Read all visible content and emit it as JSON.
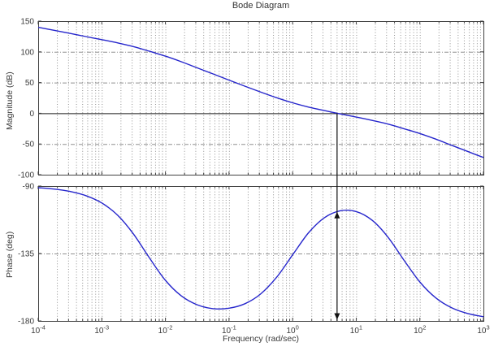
{
  "style": {
    "background": "#ffffff",
    "curve_color": "#2626cc",
    "grid_color": "#909090",
    "axis_color": "#404040",
    "zero_db_line_color": "#1a1a1a",
    "marker_color": "#111111",
    "text_color": "#3a3a3a"
  },
  "chart_data": {
    "type": "line",
    "title": "Bode Diagram",
    "xlabel": "Frequency  (rad/sec)",
    "x_scale": "log",
    "x_range": [
      0.0001,
      1000
    ],
    "x_ticks": {
      "base": "10",
      "exponents": [
        -4,
        -3,
        -2,
        -1,
        0,
        1,
        2,
        3
      ]
    },
    "grid": "on",
    "subplots": [
      {
        "name": "magnitude",
        "ylabel": "Magnitude (dB)",
        "ylim": [
          -100,
          150
        ],
        "yticks": [
          150,
          100,
          50,
          0,
          -50,
          -100
        ],
        "solid_line_at_db": 0
      },
      {
        "name": "phase",
        "ylabel": "Phase (deg)",
        "ylim": [
          -180,
          -90
        ],
        "yticks": [
          -90,
          -135,
          -180
        ]
      }
    ],
    "frequencies_rad_s": [
      0.0001,
      0.000178,
      0.000316,
      0.000562,
      0.001,
      0.00178,
      0.00316,
      0.00562,
      0.01,
      0.0178,
      0.0316,
      0.0562,
      0.1,
      0.178,
      0.316,
      0.562,
      1,
      1.78,
      3.16,
      5.62,
      10,
      17.8,
      31.6,
      56.2,
      100,
      178,
      316,
      562,
      1000
    ],
    "magnitude_db": [
      140,
      135,
      130,
      124.9,
      119.8,
      114.5,
      108.5,
      100.9,
      93,
      83.9,
      73.9,
      64,
      54,
      44.1,
      34.4,
      25.2,
      17,
      10.1,
      4.4,
      -1,
      -6.2,
      -11.6,
      -17.6,
      -25.1,
      -33,
      -42.1,
      -52.1,
      -62.1,
      -72
    ],
    "phase_deg": [
      -91.1,
      -92,
      -93.6,
      -96.4,
      -101.3,
      -109.5,
      -122.1,
      -138,
      -152.9,
      -163.3,
      -169.2,
      -171.8,
      -171.5,
      -168.5,
      -161.9,
      -150.8,
      -135.9,
      -121.2,
      -111.1,
      -106.5,
      -107,
      -112.8,
      -124.1,
      -139.4,
      -154,
      -164.6,
      -171.2,
      -175,
      -177.2
    ],
    "crossover_marker": {
      "frequency_rad_s": 5,
      "magnitude_db": 0,
      "phase_at_crossover_deg": -107.2,
      "arrow_to_deg": -180,
      "phase_margin_deg": 72.8
    }
  }
}
